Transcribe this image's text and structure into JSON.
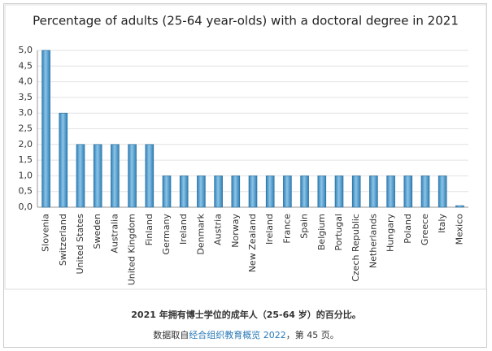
{
  "chart_data": {
    "type": "bar",
    "title": "Percentage of adults (25-64 year-olds) with a doctoral degree in 2021",
    "categories": [
      "Slovenia",
      "Switzerland",
      "United States",
      "Sweden",
      "Australia",
      "United Kingdom",
      "Finland",
      "Germany",
      "Ireland",
      "Denmark",
      "Austria",
      "Norway",
      "New Zealand",
      "Ireland",
      "France",
      "Spain",
      "Belgium",
      "Portugal",
      "Czech Republic",
      "Netherlands",
      "Hungary",
      "Poland",
      "Greece",
      "Italy",
      "Mexico"
    ],
    "values": [
      5,
      3,
      2,
      2,
      2,
      2,
      2,
      1,
      1,
      1,
      1,
      1,
      1,
      1,
      1,
      1,
      1,
      1,
      1,
      1,
      1,
      1,
      1,
      1,
      0.05
    ],
    "color": "#4a9fd4",
    "ylim": [
      0,
      5
    ],
    "yticks": [
      {
        "value": 0,
        "label": "0,0"
      },
      {
        "value": 0.5,
        "label": "0,5"
      },
      {
        "value": 1,
        "label": "1,0"
      },
      {
        "value": 1.5,
        "label": "1,5"
      },
      {
        "value": 2,
        "label": "2,0"
      },
      {
        "value": 2.5,
        "label": "2,5"
      },
      {
        "value": 3,
        "label": "3,0"
      },
      {
        "value": 3.5,
        "label": "3,5"
      },
      {
        "value": 4,
        "label": "4,0"
      },
      {
        "value": 4.5,
        "label": "4,5"
      },
      {
        "value": 5,
        "label": "5,0"
      }
    ],
    "grid": true
  },
  "caption": {
    "line1": "2021 年拥有博士学位的成年人（25-64 岁）的百分比。",
    "line2_prefix": "数据取自",
    "line2_link": "经合组织教育概览 2022",
    "line2_suffix": "，第 45 页。"
  }
}
